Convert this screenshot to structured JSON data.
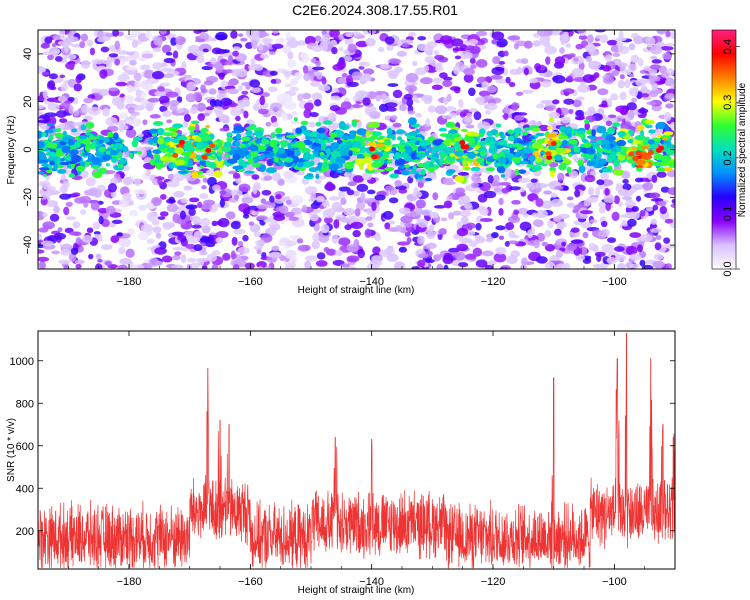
{
  "title": "C2E6.2024.308.17.55.R01",
  "chart_data": [
    {
      "type": "heatmap",
      "xlabel": "Height of straight line (km)",
      "ylabel": "Frequency (Hz)",
      "xlim": [
        -195,
        -90
      ],
      "ylim": [
        -50,
        50
      ],
      "x_ticks": [
        -180,
        -160,
        -140,
        -120,
        -100
      ],
      "y_ticks": [
        -40,
        -20,
        0,
        20,
        40
      ],
      "colorbar": {
        "label": "Normalized spectral amplitude",
        "range": [
          0.0,
          0.43
        ],
        "ticks": [
          0.0,
          0.1,
          0.2,
          0.3,
          0.4
        ],
        "colors": [
          "#ffffff",
          "#d8c0ff",
          "#8a00ff",
          "#2a00ff",
          "#0090ff",
          "#00e0c0",
          "#30ff30",
          "#ffff00",
          "#ff8000",
          "#ff0000",
          "#ff2080"
        ]
      },
      "band": {
        "center_hz": 0,
        "half_width_hz": 8,
        "hotspots_x_km": [
          -172,
          -167,
          -140,
          -125,
          -110,
          -97,
          -93
        ],
        "gap_x_km": [
          [
            -181,
            -176
          ],
          [
            -155,
            -151
          ]
        ]
      },
      "grid": false
    },
    {
      "type": "line",
      "xlabel": "Height of straight line (km)",
      "ylabel": "SNR (10 * v/v)",
      "xlim": [
        -195,
        -90
      ],
      "ylim": [
        20,
        1140
      ],
      "x_ticks": [
        -180,
        -160,
        -140,
        -120,
        -100
      ],
      "y_ticks": [
        200,
        400,
        600,
        800,
        1000
      ],
      "color": "#ee3333",
      "baseline": 170,
      "noise": 90,
      "peaks": [
        {
          "x": -167,
          "y": 965
        },
        {
          "x": -165,
          "y": 720
        },
        {
          "x": -163.5,
          "y": 700
        },
        {
          "x": -146,
          "y": 640
        },
        {
          "x": -140,
          "y": 630
        },
        {
          "x": -110,
          "y": 920
        },
        {
          "x": -99.5,
          "y": 1010
        },
        {
          "x": -98,
          "y": 1130
        },
        {
          "x": -94,
          "y": 1010
        },
        {
          "x": -92,
          "y": 700
        },
        {
          "x": -90.3,
          "y": 640
        }
      ],
      "grid": false
    }
  ]
}
